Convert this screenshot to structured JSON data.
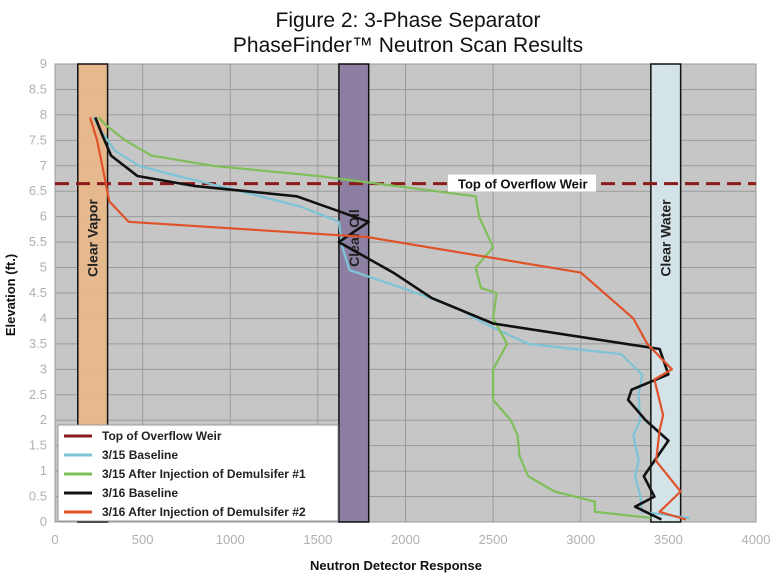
{
  "chart_data": {
    "type": "line",
    "title": "Figure 2: 3-Phase Separator",
    "subtitle": "PhaseFinder™ Neutron Scan Results",
    "xlabel": "Neutron Detector Response",
    "ylabel": "Elevation (ft.)",
    "xlim": [
      0,
      4000
    ],
    "ylim": [
      0,
      9
    ],
    "xticks": [
      "0",
      "500",
      "1000",
      "1500",
      "2000",
      "2500",
      "3000",
      "3500",
      "4000"
    ],
    "yticks": [
      "0",
      "0.5",
      "1",
      "1.5",
      "2",
      "2.5",
      "3",
      "3.5",
      "4",
      "4.5",
      "5",
      "5.5",
      "6",
      "6.5",
      "7",
      "7.5",
      "8",
      "8.5",
      "9"
    ],
    "grid": true,
    "legend_position": "bottom-left",
    "bands": [
      {
        "label": "Clear Vapor",
        "x_range": [
          130,
          300
        ],
        "color": "#e8b78a"
      },
      {
        "label": "Clear Oil",
        "x_range": [
          1620,
          1790
        ],
        "color": "#8a7ba0"
      },
      {
        "label": "Clear Water",
        "x_range": [
          3400,
          3570
        ],
        "color": "#d4e5ea"
      }
    ],
    "weir": {
      "label": "Top of Overflow Weir",
      "y": 6.65,
      "color": "#8b1a1a"
    },
    "series": [
      {
        "name": "Top of Overflow Weir",
        "color": "#8b1a1a",
        "points": []
      },
      {
        "name": "3/15 Baseline",
        "color": "#7ec3d6",
        "points": [
          [
            3620,
            0.08
          ],
          [
            3350,
            0.2
          ],
          [
            3340,
            0.5
          ],
          [
            3310,
            0.9
          ],
          [
            3330,
            1.2
          ],
          [
            3300,
            1.7
          ],
          [
            3340,
            2.0
          ],
          [
            3330,
            2.5
          ],
          [
            3350,
            2.9
          ],
          [
            3230,
            3.3
          ],
          [
            2700,
            3.5
          ],
          [
            2450,
            3.9
          ],
          [
            2300,
            4.2
          ],
          [
            1980,
            4.6
          ],
          [
            1680,
            4.95
          ],
          [
            1640,
            5.4
          ],
          [
            1620,
            5.9
          ],
          [
            1400,
            6.2
          ],
          [
            1000,
            6.55
          ],
          [
            700,
            6.8
          ],
          [
            480,
            7.0
          ],
          [
            340,
            7.3
          ],
          [
            260,
            7.7
          ],
          [
            220,
            7.95
          ]
        ]
      },
      {
        "name": "3/15 After Injection of Demulsifer #1",
        "color": "#7fbf5a",
        "points": [
          [
            3400,
            0.08
          ],
          [
            3080,
            0.2
          ],
          [
            3080,
            0.4
          ],
          [
            2850,
            0.6
          ],
          [
            2700,
            0.9
          ],
          [
            2650,
            1.3
          ],
          [
            2640,
            1.7
          ],
          [
            2600,
            2.0
          ],
          [
            2500,
            2.4
          ],
          [
            2500,
            3.0
          ],
          [
            2580,
            3.5
          ],
          [
            2500,
            4.0
          ],
          [
            2520,
            4.5
          ],
          [
            2430,
            4.6
          ],
          [
            2400,
            5.0
          ],
          [
            2500,
            5.4
          ],
          [
            2420,
            6.0
          ],
          [
            2400,
            6.4
          ],
          [
            1500,
            6.8
          ],
          [
            900,
            7.0
          ],
          [
            550,
            7.2
          ],
          [
            400,
            7.5
          ],
          [
            290,
            7.8
          ],
          [
            250,
            7.95
          ]
        ]
      },
      {
        "name": "3/16 Baseline",
        "color": "#111111",
        "points": [
          [
            3460,
            0.05
          ],
          [
            3310,
            0.3
          ],
          [
            3420,
            0.5
          ],
          [
            3360,
            0.9
          ],
          [
            3500,
            1.6
          ],
          [
            3370,
            2.0
          ],
          [
            3270,
            2.4
          ],
          [
            3290,
            2.6
          ],
          [
            3500,
            2.9
          ],
          [
            3450,
            3.4
          ],
          [
            2500,
            3.9
          ],
          [
            2150,
            4.4
          ],
          [
            1930,
            4.9
          ],
          [
            1620,
            5.5
          ],
          [
            1790,
            5.9
          ],
          [
            1380,
            6.4
          ],
          [
            800,
            6.6
          ],
          [
            470,
            6.8
          ],
          [
            320,
            7.2
          ],
          [
            270,
            7.6
          ],
          [
            230,
            7.95
          ]
        ]
      },
      {
        "name": "3/16 After Injection of Demulsifer #2",
        "color": "#e0522a",
        "points": [
          [
            3600,
            0.05
          ],
          [
            3450,
            0.2
          ],
          [
            3570,
            0.6
          ],
          [
            3430,
            1.2
          ],
          [
            3450,
            1.8
          ],
          [
            3470,
            2.1
          ],
          [
            3420,
            2.8
          ],
          [
            3520,
            3.0
          ],
          [
            3380,
            3.5
          ],
          [
            3300,
            4.0
          ],
          [
            3000,
            4.9
          ],
          [
            1780,
            5.6
          ],
          [
            420,
            5.9
          ],
          [
            310,
            6.3
          ],
          [
            270,
            7.0
          ],
          [
            240,
            7.5
          ],
          [
            200,
            7.95
          ]
        ]
      }
    ]
  }
}
